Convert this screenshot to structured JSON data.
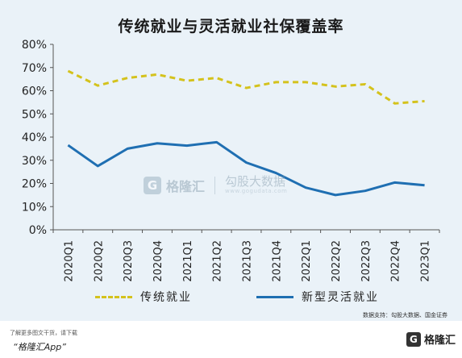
{
  "title": "传统就业与灵活就业社保覆盖率",
  "watermark": {
    "icon": "G",
    "brand": "格隆汇",
    "partner": "勾股大数据",
    "partner_url": "www.gogudata.com"
  },
  "source": "数据支持：勾股大数据、国金证券",
  "footer": {
    "promo": "了解更多图文干货，请下载",
    "app": "“格隆汇App”",
    "logo_icon": "G",
    "logo_text": "格隆汇"
  },
  "colors": {
    "traditional": "#d4c21c",
    "flexible": "#1f6fb2"
  },
  "chart_data": {
    "type": "line",
    "title": "传统就业与灵活就业社保覆盖率",
    "categories": [
      "2020Q1",
      "2020Q2",
      "2020Q3",
      "2020Q4",
      "2021Q1",
      "2021Q2",
      "2021Q3",
      "2021Q4",
      "2022Q1",
      "2022Q2",
      "2022Q3",
      "2022Q4",
      "2023Q1"
    ],
    "yticks": [
      "0%",
      "10%",
      "20%",
      "30%",
      "40%",
      "50%",
      "60%",
      "70%",
      "80%"
    ],
    "ylim": [
      0,
      80
    ],
    "grid": false,
    "legend_position": "bottom",
    "series": [
      {
        "name": "传统就业",
        "style": "dashed",
        "values": [
          68.5,
          62.2,
          65.5,
          67.0,
          64.3,
          65.5,
          61.2,
          63.7,
          63.7,
          61.8,
          62.8,
          54.5,
          55.5
        ]
      },
      {
        "name": "新型灵活就业",
        "style": "solid",
        "values": [
          36.5,
          27.5,
          35.0,
          37.3,
          36.3,
          37.8,
          29.0,
          24.5,
          18.2,
          15.0,
          16.8,
          20.4,
          19.2
        ]
      }
    ]
  }
}
